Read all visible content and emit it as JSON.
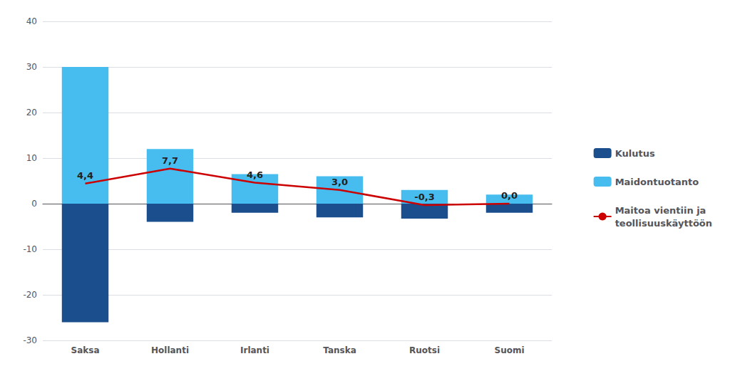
{
  "chart_data": {
    "type": "bar",
    "categories": [
      "Saksa",
      "Hollanti",
      "Irlanti",
      "Tanska",
      "Ruotsi",
      "Suomi"
    ],
    "series": [
      {
        "name": "Kulutus",
        "type": "bar",
        "color": "#1a4e8c",
        "values": [
          -26.0,
          -4.0,
          -2.0,
          -3.0,
          -3.3,
          -2.0
        ]
      },
      {
        "name": "Maidontuotanto",
        "type": "bar",
        "color": "#47bdef",
        "values": [
          30.0,
          12.0,
          6.5,
          6.0,
          3.0,
          2.0
        ]
      },
      {
        "name": "Maitoa vientiin ja\nteollisuuskäyttöön",
        "type": "line",
        "color": "#cc0000",
        "values": [
          4.4,
          7.7,
          4.6,
          3.0,
          -0.3,
          0.0
        ],
        "value_labels": [
          "4,4",
          "7,7",
          "4,6",
          "3,0",
          "-0,3",
          "0,0"
        ],
        "data_labels": true
      }
    ],
    "ylim": [
      -30,
      40
    ],
    "yticks": [
      -30,
      -20,
      -10,
      0,
      10,
      20,
      30,
      40
    ],
    "grid": true,
    "legend": "right"
  }
}
